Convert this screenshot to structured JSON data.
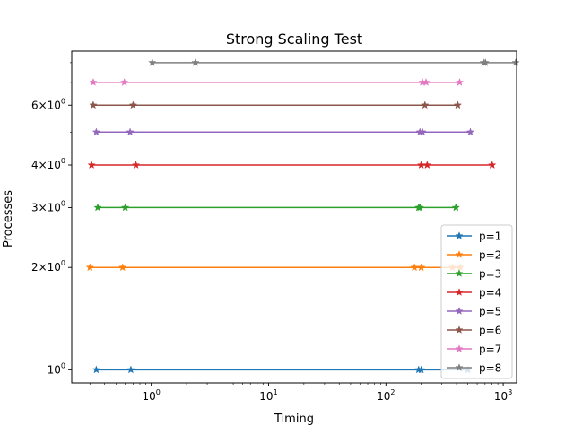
{
  "chart_data": {
    "type": "line",
    "title": "Strong Scaling Test",
    "xlabel": "Timing",
    "ylabel": "Processes",
    "xscale": "log",
    "yscale": "log",
    "xlim": [
      0.21,
      1300
    ],
    "ylim": [
      0.915,
      8.65
    ],
    "grid": false,
    "legend_position": "lower right",
    "marker": "star",
    "x_ticks": [
      {
        "value": 1,
        "base": "10",
        "exp": "0"
      },
      {
        "value": 10,
        "base": "10",
        "exp": "1"
      },
      {
        "value": 100,
        "base": "10",
        "exp": "2"
      },
      {
        "value": 1000,
        "base": "10",
        "exp": "3"
      }
    ],
    "y_ticks": [
      {
        "value": 1,
        "mant": "",
        "base": "10",
        "exp": "0"
      },
      {
        "value": 2,
        "mant": "2×",
        "base": "10",
        "exp": "0"
      },
      {
        "value": 3,
        "mant": "3×",
        "base": "10",
        "exp": "0"
      },
      {
        "value": 4,
        "mant": "4×",
        "base": "10",
        "exp": "0"
      },
      {
        "value": 6,
        "mant": "6×",
        "base": "10",
        "exp": "0"
      }
    ],
    "series": [
      {
        "name": "p=1",
        "color": "#1f77b4",
        "y": 1,
        "x": [
          0.34,
          0.67,
          190,
          200,
          500
        ]
      },
      {
        "name": "p=2",
        "color": "#ff7f0e",
        "y": 2,
        "x": [
          0.3,
          0.57,
          175,
          200,
          370,
          430
        ]
      },
      {
        "name": "p=3",
        "color": "#2ca02c",
        "y": 3,
        "x": [
          0.35,
          0.6,
          190,
          195,
          395
        ]
      },
      {
        "name": "p=4",
        "color": "#d62728",
        "y": 4,
        "x": [
          0.31,
          0.74,
          200,
          225,
          805
        ]
      },
      {
        "name": "p=5",
        "color": "#9467bd",
        "y": 5,
        "x": [
          0.34,
          0.66,
          195,
          205,
          525
        ]
      },
      {
        "name": "p=6",
        "color": "#8c564b",
        "y": 6,
        "x": [
          0.32,
          0.7,
          215,
          410
        ]
      },
      {
        "name": "p=7",
        "color": "#e377c2",
        "y": 7,
        "x": [
          0.32,
          0.59,
          205,
          220,
          425
        ]
      },
      {
        "name": "p=8",
        "color": "#7f7f7f",
        "y": 8,
        "x": [
          1.02,
          2.38,
          680,
          705,
          1280
        ]
      }
    ]
  }
}
